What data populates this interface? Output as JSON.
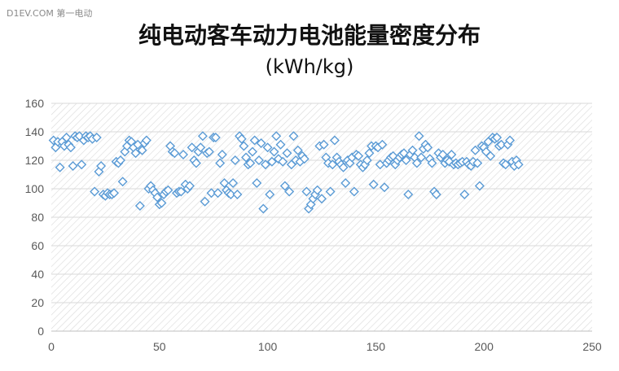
{
  "watermark": "D1EV.COM 第一电动",
  "chart_data": {
    "type": "scatter",
    "title": "纯电动客车动力电池能量密度分布",
    "subtitle": "(kWh/kg)",
    "xlim": [
      0,
      250
    ],
    "ylim": [
      0,
      160
    ],
    "xticks": [
      0,
      50,
      100,
      150,
      200,
      250
    ],
    "yticks": [
      0,
      20,
      40,
      60,
      80,
      100,
      120,
      140,
      160
    ],
    "grid": true,
    "legend": "none",
    "marker": "diamond-outline",
    "color": "#5b9bd5",
    "series": [
      {
        "points": [
          [
            1,
            134
          ],
          [
            2,
            129
          ],
          [
            3,
            133
          ],
          [
            4,
            115
          ],
          [
            5,
            133
          ],
          [
            6,
            130
          ],
          [
            7,
            136
          ],
          [
            8,
            131
          ],
          [
            9,
            129
          ],
          [
            10,
            116
          ],
          [
            11,
            137
          ],
          [
            12,
            136
          ],
          [
            13,
            137
          ],
          [
            14,
            117
          ],
          [
            15,
            134
          ],
          [
            16,
            137
          ],
          [
            17,
            136
          ],
          [
            18,
            137
          ],
          [
            19,
            135
          ],
          [
            20,
            98
          ],
          [
            21,
            136
          ],
          [
            22,
            112
          ],
          [
            23,
            116
          ],
          [
            24,
            96
          ],
          [
            25,
            95
          ],
          [
            26,
            97
          ],
          [
            27,
            96
          ],
          [
            28,
            96
          ],
          [
            29,
            97
          ],
          [
            30,
            119
          ],
          [
            31,
            118
          ],
          [
            32,
            120
          ],
          [
            33,
            105
          ],
          [
            34,
            126
          ],
          [
            35,
            130
          ],
          [
            36,
            134
          ],
          [
            37,
            133
          ],
          [
            38,
            129
          ],
          [
            39,
            125
          ],
          [
            40,
            131
          ],
          [
            41,
            88
          ],
          [
            42,
            127
          ],
          [
            43,
            132
          ],
          [
            44,
            134
          ],
          [
            45,
            100
          ],
          [
            46,
            102
          ],
          [
            47,
            99
          ],
          [
            48,
            97
          ],
          [
            49,
            94
          ],
          [
            50,
            89
          ],
          [
            51,
            90
          ],
          [
            52,
            96
          ],
          [
            53,
            98
          ],
          [
            54,
            99
          ],
          [
            55,
            130
          ],
          [
            56,
            126
          ],
          [
            57,
            125
          ],
          [
            58,
            97
          ],
          [
            59,
            98
          ],
          [
            60,
            98
          ],
          [
            61,
            124
          ],
          [
            62,
            103
          ],
          [
            63,
            100
          ],
          [
            64,
            102
          ],
          [
            65,
            129
          ],
          [
            66,
            120
          ],
          [
            67,
            118
          ],
          [
            68,
            126
          ],
          [
            69,
            129
          ],
          [
            70,
            137
          ],
          [
            71,
            91
          ],
          [
            72,
            125
          ],
          [
            73,
            126
          ],
          [
            74,
            97
          ],
          [
            75,
            136
          ],
          [
            76,
            136
          ],
          [
            77,
            97
          ],
          [
            78,
            118
          ],
          [
            79,
            124
          ],
          [
            80,
            104
          ],
          [
            81,
            99
          ],
          [
            82,
            97
          ],
          [
            83,
            96
          ],
          [
            84,
            104
          ],
          [
            85,
            120
          ],
          [
            86,
            96
          ],
          [
            87,
            137
          ],
          [
            88,
            135
          ],
          [
            89,
            130
          ],
          [
            90,
            122
          ],
          [
            91,
            117
          ],
          [
            92,
            118
          ],
          [
            93,
            126
          ],
          [
            94,
            134
          ],
          [
            95,
            104
          ],
          [
            96,
            120
          ],
          [
            97,
            132
          ],
          [
            98,
            86
          ],
          [
            99,
            117
          ],
          [
            100,
            129
          ],
          [
            101,
            96
          ],
          [
            102,
            119
          ],
          [
            103,
            126
          ],
          [
            104,
            137
          ],
          [
            105,
            121
          ],
          [
            106,
            131
          ],
          [
            107,
            119
          ],
          [
            108,
            102
          ],
          [
            109,
            125
          ],
          [
            110,
            98
          ],
          [
            111,
            117
          ],
          [
            112,
            137
          ],
          [
            113,
            120
          ],
          [
            114,
            127
          ],
          [
            115,
            119
          ],
          [
            116,
            123
          ],
          [
            117,
            121
          ],
          [
            118,
            98
          ],
          [
            119,
            86
          ],
          [
            120,
            89
          ],
          [
            121,
            93
          ],
          [
            122,
            96
          ],
          [
            123,
            99
          ],
          [
            124,
            130
          ],
          [
            125,
            93
          ],
          [
            126,
            131
          ],
          [
            127,
            122
          ],
          [
            128,
            118
          ],
          [
            129,
            98
          ],
          [
            130,
            117
          ],
          [
            131,
            134
          ],
          [
            132,
            122
          ],
          [
            133,
            119
          ],
          [
            134,
            117
          ],
          [
            135,
            115
          ],
          [
            136,
            104
          ],
          [
            137,
            120
          ],
          [
            138,
            118
          ],
          [
            139,
            122
          ],
          [
            140,
            98
          ],
          [
            141,
            124
          ],
          [
            142,
            123
          ],
          [
            143,
            117
          ],
          [
            144,
            115
          ],
          [
            145,
            117
          ],
          [
            146,
            120
          ],
          [
            147,
            125
          ],
          [
            148,
            130
          ],
          [
            149,
            103
          ],
          [
            150,
            130
          ],
          [
            151,
            129
          ],
          [
            152,
            117
          ],
          [
            153,
            131
          ],
          [
            154,
            101
          ],
          [
            155,
            118
          ],
          [
            156,
            120
          ],
          [
            157,
            122
          ],
          [
            158,
            123
          ],
          [
            159,
            117
          ],
          [
            160,
            120
          ],
          [
            161,
            122
          ],
          [
            162,
            124
          ],
          [
            163,
            125
          ],
          [
            164,
            120
          ],
          [
            165,
            96
          ],
          [
            166,
            124
          ],
          [
            167,
            127
          ],
          [
            168,
            122
          ],
          [
            169,
            118
          ],
          [
            170,
            137
          ],
          [
            171,
            122
          ],
          [
            172,
            128
          ],
          [
            173,
            131
          ],
          [
            174,
            129
          ],
          [
            175,
            121
          ],
          [
            176,
            118
          ],
          [
            177,
            98
          ],
          [
            178,
            96
          ],
          [
            179,
            125
          ],
          [
            180,
            122
          ],
          [
            181,
            124
          ],
          [
            182,
            118
          ],
          [
            183,
            120
          ],
          [
            184,
            119
          ],
          [
            185,
            124
          ],
          [
            186,
            117
          ],
          [
            187,
            118
          ],
          [
            188,
            117
          ],
          [
            189,
            118
          ],
          [
            190,
            119
          ],
          [
            191,
            96
          ],
          [
            192,
            119
          ],
          [
            193,
            117
          ],
          [
            194,
            116
          ],
          [
            195,
            119
          ],
          [
            196,
            127
          ],
          [
            197,
            118
          ],
          [
            198,
            102
          ],
          [
            199,
            130
          ],
          [
            200,
            129
          ],
          [
            201,
            126
          ],
          [
            202,
            133
          ],
          [
            203,
            123
          ],
          [
            204,
            136
          ],
          [
            205,
            135
          ],
          [
            206,
            136
          ],
          [
            207,
            130
          ],
          [
            208,
            131
          ],
          [
            209,
            118
          ],
          [
            210,
            117
          ],
          [
            211,
            131
          ],
          [
            212,
            134
          ],
          [
            213,
            119
          ],
          [
            214,
            116
          ],
          [
            215,
            120
          ],
          [
            216,
            117
          ]
        ]
      }
    ]
  }
}
